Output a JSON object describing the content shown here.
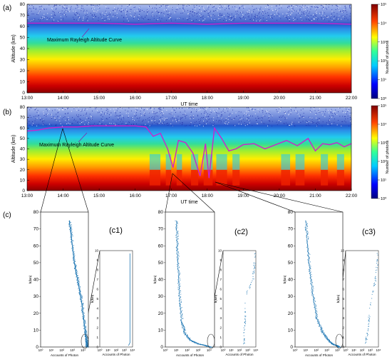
{
  "figure": {
    "panel_a_label": "(a)",
    "panel_b_label": "(b)",
    "panel_c_label": "(c)",
    "curve_label": "Maximum Rayleigh Altitude Curve",
    "colorbar_title": "Number of photons",
    "colorbar_ticks": [
      "10⁵",
      "10⁴",
      "10³",
      "10²",
      "10¹",
      "10⁰"
    ],
    "sub_labels": [
      "(c1)",
      "(c2)",
      "(c3)"
    ],
    "profile_xlabel": "Accounts of Photon",
    "profile_ylabel": "h(km)",
    "profile_x_ticks": [
      "10⁰",
      "10¹",
      "10²",
      "10³",
      "10⁴"
    ],
    "profile_y_ticks": [
      "0",
      "10",
      "20",
      "30",
      "40",
      "50",
      "60",
      "70",
      "80"
    ],
    "inset_y_ticks": [
      "0",
      "1",
      "2",
      "3",
      "4",
      "5",
      "6",
      "7",
      "8",
      "9",
      "10"
    ],
    "inset_x_ticks": [
      "10⁰",
      "10¹",
      "10²",
      "10³",
      "10⁴"
    ],
    "colors": {
      "curve": "#cc22cc",
      "noise": "#2233aa",
      "line": "#1f77b4"
    }
  },
  "chart_data": [
    {
      "type": "heatmap",
      "id": "a",
      "xlabel": "UT time",
      "ylabel": "Altitude (km)",
      "x_ticks": [
        "13:00",
        "14:00",
        "15:00",
        "16:00",
        "17:00",
        "18:00",
        "19:00",
        "20:00",
        "21:00",
        "22:00"
      ],
      "y_ticks": [
        0,
        10,
        20,
        30,
        40,
        50,
        60,
        70,
        80
      ],
      "ylim": [
        0,
        80
      ],
      "colorbar_label": "Number of photons",
      "colorbar_scale": "log",
      "colorbar_range": [
        1,
        100000
      ],
      "curve": {
        "name": "Maximum Rayleigh Altitude Curve",
        "x": [
          13,
          14,
          15,
          16,
          17,
          18,
          19,
          20,
          21,
          22
        ],
        "y": [
          63,
          63,
          63,
          62,
          63,
          62,
          63,
          63,
          63,
          62
        ]
      }
    },
    {
      "type": "heatmap",
      "id": "b",
      "xlabel": "UT time",
      "ylabel": "Altitude (km)",
      "x_ticks": [
        "13:00",
        "14:00",
        "15:00",
        "16:00",
        "17:00",
        "18:00",
        "19:00",
        "20:00",
        "21:00",
        "22:00"
      ],
      "y_ticks": [
        0,
        10,
        20,
        30,
        40,
        50,
        60,
        70,
        80
      ],
      "ylim": [
        0,
        80
      ],
      "colorbar_label": "Number of photons",
      "colorbar_scale": "log",
      "colorbar_range": [
        1,
        100000
      ],
      "curve": {
        "name": "Maximum Rayleigh Altitude Curve",
        "x": [
          13,
          13.3,
          13.6,
          14,
          14.4,
          14.8,
          15.2,
          15.6,
          16.0,
          16.3,
          16.5,
          16.7,
          16.9,
          17.05,
          17.2,
          17.4,
          17.6,
          17.8,
          17.95,
          18.05,
          18.2,
          18.4,
          18.6,
          18.8,
          19.0,
          19.3,
          19.6,
          19.9,
          20.2,
          20.5,
          20.8,
          21.0,
          21.2,
          21.4,
          21.6,
          21.8,
          22.0
        ],
        "y": [
          57,
          58,
          60,
          61,
          61,
          62,
          62,
          62,
          62,
          61,
          52,
          55,
          40,
          22,
          48,
          46,
          36,
          14,
          45,
          12,
          60,
          50,
          38,
          40,
          44,
          45,
          40,
          44,
          48,
          43,
          50,
          38,
          45,
          44,
          46,
          42,
          45
        ]
      }
    },
    {
      "type": "line",
      "id": "c1",
      "title": "(c1)",
      "xlabel": "Accounts of Photon",
      "ylabel": "h(km)",
      "x_scale": "log",
      "ylim": [
        0,
        80
      ],
      "x": [
        500,
        800,
        1500,
        3000,
        6000,
        10000,
        15000,
        20000,
        22000,
        22000
      ],
      "y": [
        75,
        65,
        50,
        40,
        30,
        20,
        10,
        5,
        2,
        0
      ]
    },
    {
      "type": "line",
      "id": "c2",
      "title": "(c2)",
      "xlabel": "Accounts of Photon",
      "ylabel": "h(km)",
      "x_scale": "log",
      "ylim": [
        0,
        80
      ],
      "x": [
        10,
        12,
        15,
        20,
        30,
        60,
        200,
        1000,
        5000,
        15000
      ],
      "y": [
        75,
        60,
        45,
        30,
        15,
        8,
        4,
        2,
        1,
        0
      ]
    },
    {
      "type": "line",
      "id": "c3",
      "title": "(c3)",
      "xlabel": "Accounts of Photon",
      "ylabel": "h(km)",
      "x_scale": "log",
      "ylim": [
        0,
        80
      ],
      "x": [
        10,
        15,
        25,
        50,
        100,
        300,
        1000,
        3000,
        8000,
        15000
      ],
      "y": [
        75,
        60,
        45,
        30,
        18,
        10,
        5,
        2,
        1,
        0
      ]
    }
  ]
}
